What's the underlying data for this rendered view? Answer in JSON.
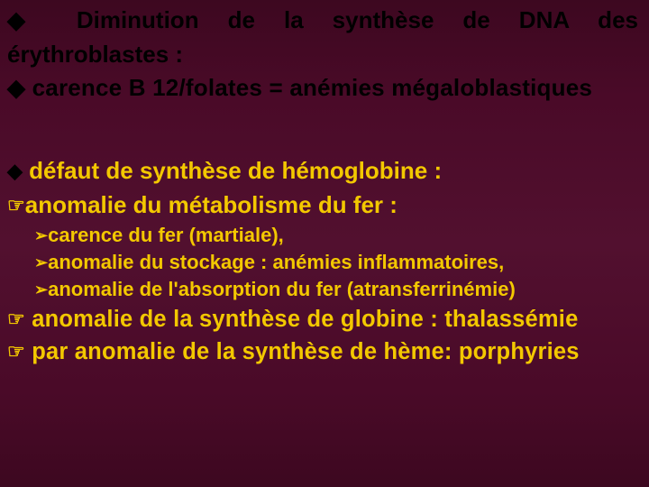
{
  "colors": {
    "background_gradient_top": "#3d0820",
    "background_gradient_mid": "#52102f",
    "background_gradient_bottom": "#3d0820",
    "black_text": "#000000",
    "yellow_text": "#f3c800"
  },
  "fonts": {
    "family": "Comic Sans MS",
    "main_size_pt": 20,
    "sub_size_pt": 17,
    "weight": "bold"
  },
  "bullets": {
    "filled_diamond": "◆",
    "filled_hand": "☞",
    "filled_arrow": "➢"
  },
  "lines": {
    "b1": "◆  Diminution de la synthèse de DNA des",
    "b1c": "érythroblastes :",
    "b2": "◆ carence B 12/folates = anémies mégaloblastiques",
    "b3": "◆ défaut de synthèse de hémoglobine :",
    "b4": "☞anomalie du métabolisme du fer :",
    "s1": "➢carence du fer (martiale),",
    "s2": "➢anomalie du stockage : anémies inflammatoires,",
    "s3": "➢anomalie de l'absorption du fer (atransferrinémie)",
    "b5": "☞ anomalie de la synthèse de globine : thalassémie",
    "b6": "☞ par anomalie de la synthèse de hème: porphyries"
  }
}
